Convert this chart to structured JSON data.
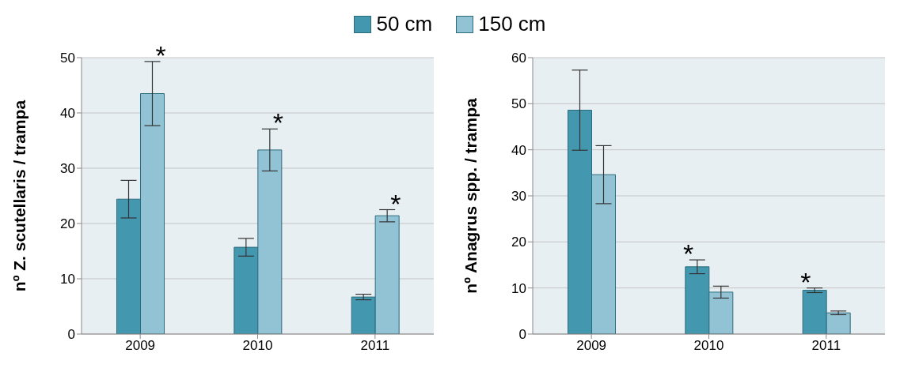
{
  "chart_data": [
    {
      "type": "bar",
      "categories": [
        "2009",
        "2010",
        "2011"
      ],
      "ylabel": "nº Z. scutellaris / trampa",
      "ylim": [
        0,
        50
      ],
      "yticks": [
        0,
        10,
        20,
        30,
        40,
        50
      ],
      "grid": "y",
      "legend": "top",
      "series": [
        {
          "name": "50 cm",
          "color": "#4397ae",
          "values": [
            24.4,
            15.7,
            6.7
          ],
          "errors": [
            3.4,
            1.6,
            0.5
          ]
        },
        {
          "name": "150 cm",
          "color": "#92c3d5",
          "values": [
            43.5,
            33.3,
            21.4
          ],
          "errors": [
            5.8,
            3.8,
            1.1
          ]
        }
      ],
      "annotations": [
        {
          "text": "*",
          "x": "2009",
          "y": 43.5
        },
        {
          "text": "*",
          "x": "2010",
          "y": 33.3
        },
        {
          "text": "*",
          "x": "2011",
          "y": 21.4
        }
      ]
    },
    {
      "type": "bar",
      "categories": [
        "2009",
        "2010",
        "2011"
      ],
      "ylabel": "nº Anagrus spp. / trampa",
      "ylim": [
        0,
        60
      ],
      "yticks": [
        0,
        10,
        20,
        30,
        40,
        50,
        60
      ],
      "grid": "y",
      "series": [
        {
          "color": "#4397ae",
          "values": [
            48.6,
            14.6,
            9.5
          ],
          "errors": [
            8.7,
            1.5,
            0.5
          ]
        },
        {
          "color": "#92c3d5",
          "values": [
            34.6,
            9.1,
            4.6
          ],
          "errors": [
            6.3,
            1.3,
            0.4
          ]
        }
      ],
      "annotations": [
        {
          "text": "*",
          "x": "2010",
          "y": 14.6
        },
        {
          "text": "*",
          "x": "2011",
          "y": 9.5
        }
      ]
    }
  ]
}
